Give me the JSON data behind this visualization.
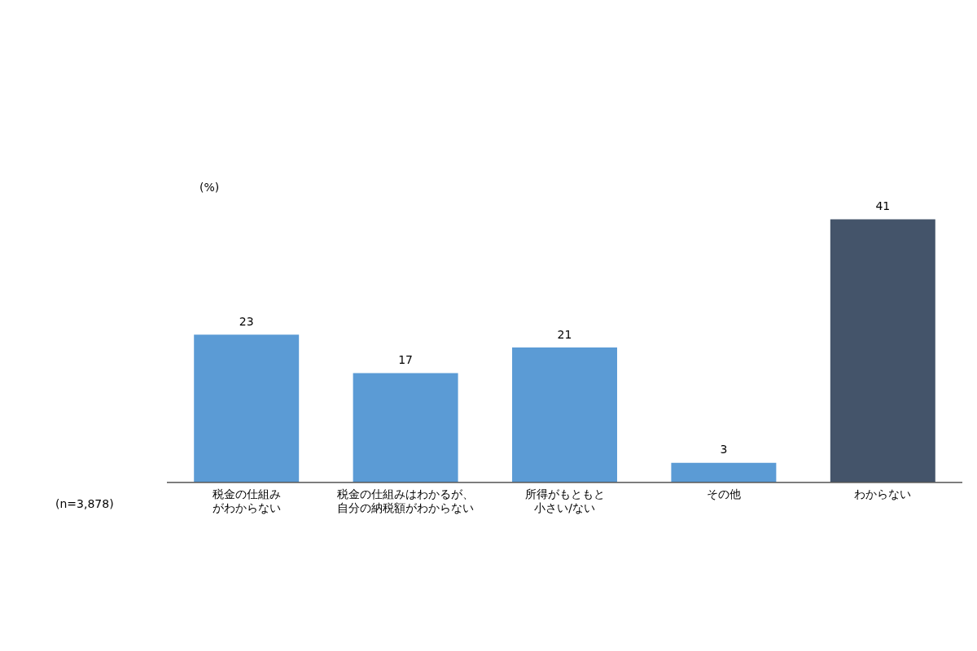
{
  "chart_data": {
    "type": "bar",
    "ylabel": "(%)",
    "categories": [
      "税金の仕組みがわからない",
      "税金の仕組みはわかるが、自分の納税額がわからない",
      "所得がもともと小さい/ない",
      "その他",
      "わからない"
    ],
    "values": [
      23,
      17,
      21,
      3,
      41
    ],
    "colors": [
      "#5b9bd5",
      "#5b9bd5",
      "#5b9bd5",
      "#5b9bd5",
      "#44546a"
    ],
    "data_labels": true,
    "grid": false,
    "legend": false,
    "annotations": [
      "(n=3,878)"
    ]
  }
}
